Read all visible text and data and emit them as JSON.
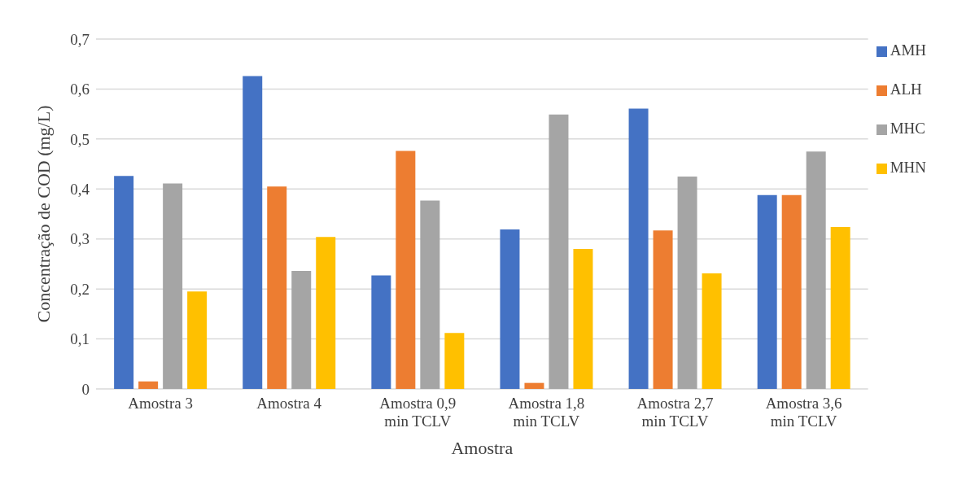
{
  "chart_data": {
    "type": "bar",
    "xlabel": "Amostra",
    "ylabel": "Concentração de COD (mg/L)",
    "categories": [
      "Amostra 3",
      "Amostra 4",
      "Amostra 0,9 min TCLV",
      "Amostra 1,8 min TCLV",
      "Amostra 2,7 min TCLV",
      "Amostra 3,6 min TCLV"
    ],
    "series": [
      {
        "name": "AMH",
        "color": "#4472c4",
        "values": [
          0.426,
          0.626,
          0.227,
          0.319,
          0.561,
          0.388
        ]
      },
      {
        "name": "ALH",
        "color": "#ed7d31",
        "values": [
          0.015,
          0.405,
          0.476,
          0.012,
          0.317,
          0.388
        ]
      },
      {
        "name": "MHC",
        "color": "#a5a5a5",
        "values": [
          0.411,
          0.236,
          0.377,
          0.549,
          0.425,
          0.475
        ]
      },
      {
        "name": "MHN",
        "color": "#ffc000",
        "values": [
          0.195,
          0.304,
          0.112,
          0.28,
          0.231,
          0.324
        ]
      }
    ],
    "ylim": [
      0,
      0.7
    ],
    "yticks": [
      0,
      {
        "value": 0.1,
        "label": "0,1"
      },
      {
        "value": 0.2,
        "label": "0,2"
      },
      {
        "value": 0.3,
        "label": "0,3"
      },
      {
        "value": 0.4,
        "label": "0,4"
      },
      {
        "value": 0.5,
        "label": "0,5"
      },
      {
        "value": 0.6,
        "label": "0,6"
      },
      {
        "value": 0.7,
        "label": "0,7"
      }
    ],
    "grid": "y",
    "legend": "right"
  }
}
